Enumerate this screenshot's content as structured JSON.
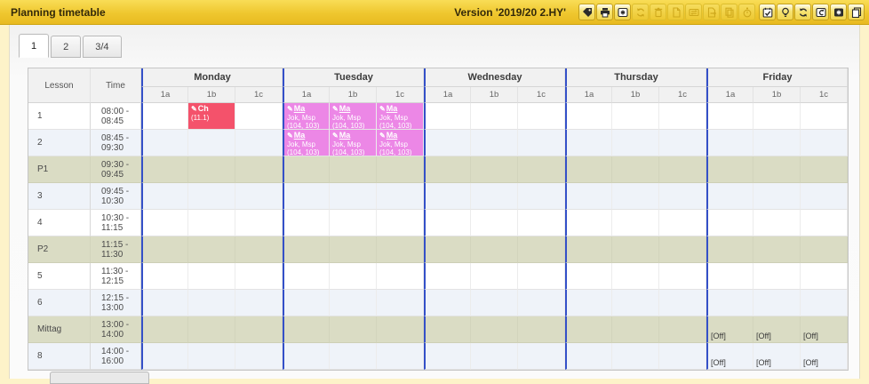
{
  "header": {
    "title": "Planning timetable",
    "version_label": "Version '2019/20 2.HY'",
    "toolbar": [
      {
        "icon": "tag-icon",
        "enabled": true
      },
      {
        "icon": "print-icon",
        "enabled": true
      },
      {
        "icon": "screen-star-icon",
        "enabled": true
      },
      {
        "icon": "refresh-icon",
        "enabled": false
      },
      {
        "icon": "trash-icon",
        "enabled": false
      },
      {
        "icon": "new-page-icon",
        "enabled": false
      },
      {
        "icon": "swap-arrows-icon",
        "enabled": false
      },
      {
        "icon": "export-page-icon",
        "enabled": false
      },
      {
        "icon": "copy-pages-icon",
        "enabled": false
      },
      {
        "icon": "stopwatch-icon",
        "enabled": false
      },
      {
        "icon": "calendar-check-icon",
        "enabled": true
      },
      {
        "icon": "lightbulb-icon",
        "enabled": true
      },
      {
        "icon": "sync-icon",
        "enabled": true
      },
      {
        "icon": "window-undo-icon",
        "enabled": true
      },
      {
        "icon": "screen-star-filled-icon",
        "enabled": true
      },
      {
        "icon": "duplicate-icon",
        "enabled": true
      }
    ]
  },
  "tabs": [
    {
      "label": "1",
      "active": true
    },
    {
      "label": "2",
      "active": false
    },
    {
      "label": "3/4",
      "active": false
    }
  ],
  "table": {
    "corner_headers": [
      "Lesson",
      "Time"
    ],
    "days": [
      "Monday",
      "Tuesday",
      "Wednesday",
      "Thursday",
      "Friday"
    ],
    "subcolumns": [
      "1a",
      "1b",
      "1c"
    ],
    "rows": [
      {
        "lesson": "1",
        "time": "08:00 - 08:45",
        "variant": "white"
      },
      {
        "lesson": "2",
        "time": "08:45 - 09:30",
        "variant": "alt"
      },
      {
        "lesson": "P1",
        "time": "09:30 - 09:45",
        "variant": "break"
      },
      {
        "lesson": "3",
        "time": "09:45 - 10:30",
        "variant": "alt"
      },
      {
        "lesson": "4",
        "time": "10:30 - 11:15",
        "variant": "white"
      },
      {
        "lesson": "P2",
        "time": "11:15 - 11:30",
        "variant": "break"
      },
      {
        "lesson": "5",
        "time": "11:30 - 12:15",
        "variant": "white"
      },
      {
        "lesson": "6",
        "time": "12:15 - 13:00",
        "variant": "alt"
      },
      {
        "lesson": "Mittag",
        "time": "13:00 - 14:00",
        "variant": "break"
      },
      {
        "lesson": "8",
        "time": "14:00 - 16:00",
        "variant": "alt"
      }
    ],
    "entries": [
      {
        "row": 0,
        "day": 0,
        "col": 1,
        "color": "#f4526b",
        "lines": [
          {
            "text": "Ch",
            "bold": true,
            "pencil": true
          },
          {
            "text": "(11.1)"
          }
        ]
      },
      {
        "row": 0,
        "day": 1,
        "col": 0,
        "color": "#ec87e6",
        "lines": [
          {
            "text": "Ma",
            "bold": true,
            "underline": true,
            "pencil": true
          },
          {
            "text": "Jok, Msp"
          },
          {
            "text": "(104, 103)"
          }
        ]
      },
      {
        "row": 0,
        "day": 1,
        "col": 1,
        "color": "#ec87e6",
        "lines": [
          {
            "text": "Ma",
            "bold": true,
            "underline": true,
            "pencil": true
          },
          {
            "text": "Jok, Msp"
          },
          {
            "text": "(104, 103)"
          }
        ]
      },
      {
        "row": 0,
        "day": 1,
        "col": 2,
        "color": "#ec87e6",
        "lines": [
          {
            "text": "Ma",
            "bold": true,
            "underline": true,
            "pencil": true
          },
          {
            "text": "Jok, Msp"
          },
          {
            "text": "(104, 103)"
          }
        ]
      },
      {
        "row": 1,
        "day": 1,
        "col": 0,
        "color": "#ec87e6",
        "lines": [
          {
            "text": "Ma",
            "bold": true,
            "underline": true,
            "pencil": true
          },
          {
            "text": "Jok, Msp"
          },
          {
            "text": "(104, 103)"
          }
        ]
      },
      {
        "row": 1,
        "day": 1,
        "col": 1,
        "color": "#ec87e6",
        "lines": [
          {
            "text": "Ma",
            "bold": true,
            "underline": true,
            "pencil": true
          },
          {
            "text": "Jok, Msp"
          },
          {
            "text": "(104, 103)"
          }
        ]
      },
      {
        "row": 1,
        "day": 1,
        "col": 2,
        "color": "#ec87e6",
        "lines": [
          {
            "text": "Ma",
            "bold": true,
            "underline": true,
            "pencil": true
          },
          {
            "text": "Jok, Msp"
          },
          {
            "text": "(104, 103)"
          }
        ]
      }
    ],
    "off_markers": [
      {
        "row": 8,
        "day": 4,
        "col": 0,
        "label": "[Off]"
      },
      {
        "row": 8,
        "day": 4,
        "col": 1,
        "label": "[Off]"
      },
      {
        "row": 8,
        "day": 4,
        "col": 2,
        "label": "[Off]"
      },
      {
        "row": 9,
        "day": 4,
        "col": 0,
        "label": "[Off]"
      },
      {
        "row": 9,
        "day": 4,
        "col": 1,
        "label": "[Off]"
      },
      {
        "row": 9,
        "day": 4,
        "col": 2,
        "label": "[Off]"
      }
    ]
  },
  "colors": {
    "topbar_yellow": "#efc72f",
    "day_separator_blue": "#3450c8",
    "break_row": "#dadcc4",
    "alt_row": "#eff3f9",
    "entry_red": "#f4526b",
    "entry_violet": "#ec87e6"
  },
  "pencil_glyph": "✎"
}
